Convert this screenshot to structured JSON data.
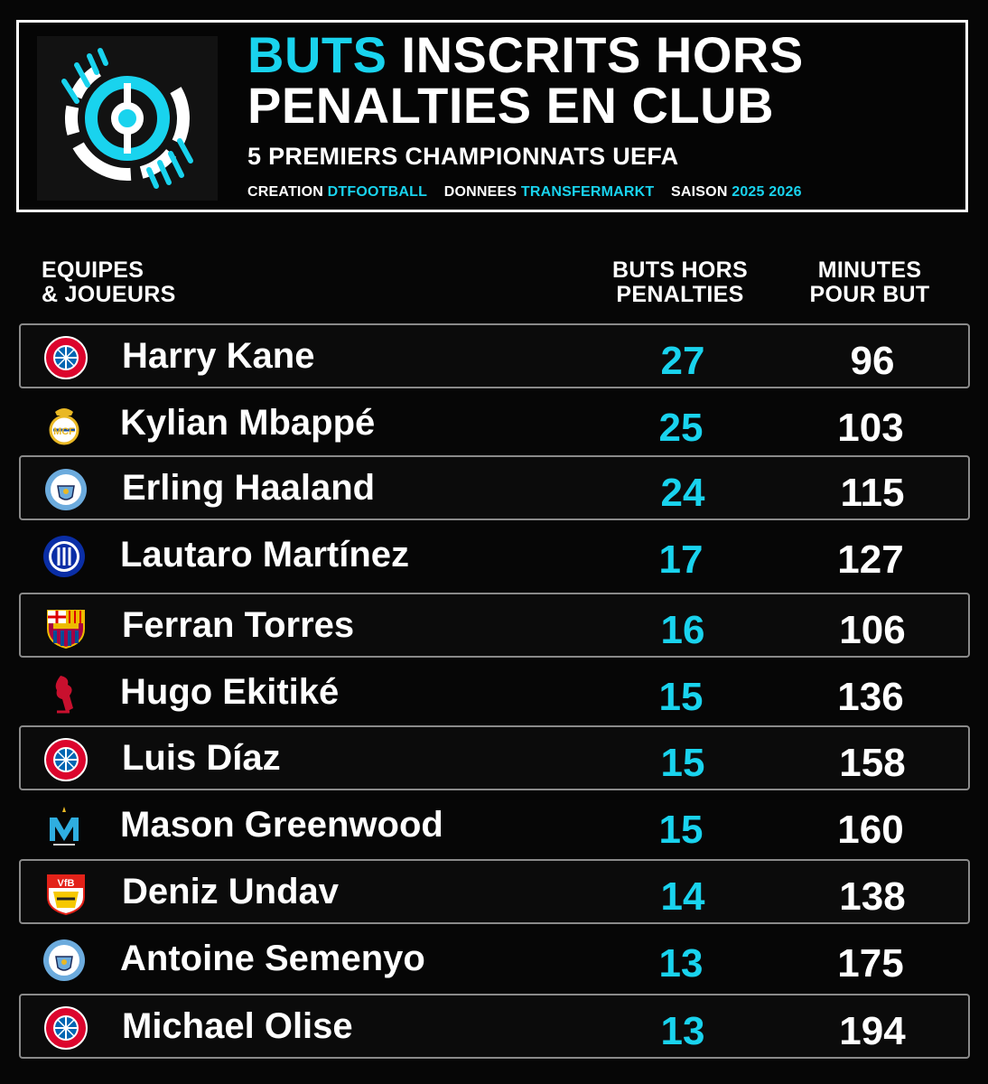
{
  "header": {
    "title_accent": "BUTS",
    "title_rest": " INSCRITS HORS",
    "title_line2": "PENALTIES EN CLUB",
    "subtitle": "5 PREMIERS CHAMPIONNATS UEFA",
    "credits": {
      "creation_label": "CREATION",
      "creation_value": "DTFOOTBALL",
      "data_label": "DONNEES",
      "data_value": "TRANSFERMARKT",
      "season_label": "SAISON",
      "season_value": "2025 2026"
    },
    "logo_icon": "dtfootball-logo-icon"
  },
  "columns": {
    "team_line1": "EQUIPES",
    "team_line2": "& JOUEURS",
    "goals_line1": "BUTS HORS",
    "goals_line2": "PENALTIES",
    "minutes_line1": "MINUTES",
    "minutes_line2": "POUR BUT"
  },
  "colors": {
    "accent": "#19d3ee",
    "background": "#060606",
    "row_border": "#8a8a8a"
  },
  "players": [
    {
      "name": "Harry Kane",
      "club_icon": "bayern-crest-icon",
      "goals": "27",
      "minutes": "96"
    },
    {
      "name": "Kylian Mbappé",
      "club_icon": "real-madrid-crest-icon",
      "goals": "25",
      "minutes": "103"
    },
    {
      "name": "Erling Haaland",
      "club_icon": "man-city-crest-icon",
      "goals": "24",
      "minutes": "115"
    },
    {
      "name": "Lautaro Martínez",
      "club_icon": "inter-crest-icon",
      "goals": "17",
      "minutes": "127"
    },
    {
      "name": "Ferran Torres",
      "club_icon": "barcelona-crest-icon",
      "goals": "16",
      "minutes": "106"
    },
    {
      "name": "Hugo Ekitiké",
      "club_icon": "liverpool-crest-icon",
      "goals": "15",
      "minutes": "136"
    },
    {
      "name": "Luis Díaz",
      "club_icon": "bayern-crest-icon",
      "goals": "15",
      "minutes": "158"
    },
    {
      "name": "Mason Greenwood",
      "club_icon": "marseille-crest-icon",
      "goals": "15",
      "minutes": "160"
    },
    {
      "name": "Deniz Undav",
      "club_icon": "stuttgart-crest-icon",
      "goals": "14",
      "minutes": "138"
    },
    {
      "name": "Antoine Semenyo",
      "club_icon": "man-city-crest-icon",
      "goals": "13",
      "minutes": "175"
    },
    {
      "name": "Michael Olise",
      "club_icon": "bayern-crest-icon",
      "goals": "13",
      "minutes": "194"
    }
  ]
}
